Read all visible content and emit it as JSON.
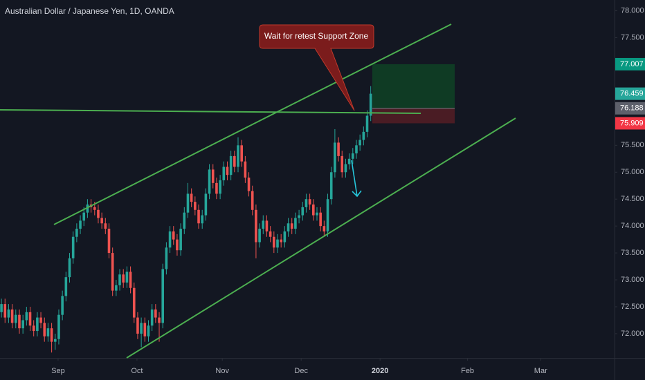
{
  "chart_data": {
    "type": "candlestick",
    "title": "Australian Dollar / Japanese Yen, 1D, OANDA",
    "annotation": "Wait for retest Support Zone",
    "up_color": "#26a69a",
    "down_color": "#ef5350",
    "ylim": [
      71.55,
      78.2
    ],
    "yticks": [
      {
        "value": 78,
        "label": "78.000"
      },
      {
        "value": 77.5,
        "label": "77.500"
      },
      {
        "value": 75.5,
        "label": "75.500"
      },
      {
        "value": 75,
        "label": "75.000"
      },
      {
        "value": 74.5,
        "label": "74.500"
      },
      {
        "value": 74,
        "label": "74.000"
      },
      {
        "value": 73.5,
        "label": "73.500"
      },
      {
        "value": 73,
        "label": "73.000"
      },
      {
        "value": 72.5,
        "label": "72.500"
      },
      {
        "value": 72,
        "label": "72.000"
      }
    ],
    "xlim": [
      -0.4,
      171
    ],
    "xticks": [
      {
        "value": 15.8,
        "label": "Sep"
      },
      {
        "value": 37.8,
        "label": "Oct"
      },
      {
        "value": 61.6,
        "label": "Nov"
      },
      {
        "value": 83.6,
        "label": "Dec"
      },
      {
        "value": 105.6,
        "label": "2020"
      },
      {
        "value": 130,
        "label": "Feb"
      },
      {
        "value": 150.4,
        "label": "Mar"
      }
    ],
    "price_tags": [
      {
        "value": 77.007,
        "color": "#089981"
      },
      {
        "value": 76.459,
        "color": "#26a69a"
      },
      {
        "value": 76.188,
        "color": "#5d606b"
      },
      {
        "value": 75.909,
        "color": "#f23645"
      }
    ],
    "candles": [
      [
        72.4,
        72.65,
        72.3,
        72.55
      ],
      [
        72.55,
        72.65,
        72.2,
        72.3
      ],
      [
        72.3,
        72.55,
        72.2,
        72.45
      ],
      [
        72.45,
        72.55,
        72.1,
        72.2
      ],
      [
        72.2,
        72.45,
        72.1,
        72.35
      ],
      [
        72.35,
        72.45,
        72.0,
        72.1
      ],
      [
        72.1,
        72.35,
        72.0,
        72.25
      ],
      [
        72.25,
        72.5,
        72.15,
        72.4
      ],
      [
        72.4,
        72.5,
        72.05,
        72.15
      ],
      [
        72.15,
        72.25,
        71.95,
        72.05
      ],
      [
        72.05,
        72.4,
        71.95,
        72.3
      ],
      [
        72.3,
        72.4,
        72.1,
        72.2
      ],
      [
        72.2,
        72.3,
        71.85,
        71.95
      ],
      [
        71.95,
        72.2,
        71.85,
        72.1
      ],
      [
        72.1,
        72.2,
        71.65,
        71.85
      ],
      [
        71.85,
        72.0,
        71.7,
        71.9
      ],
      [
        71.9,
        72.45,
        71.8,
        72.35
      ],
      [
        72.35,
        72.8,
        72.25,
        72.7
      ],
      [
        72.7,
        73.15,
        72.6,
        73.05
      ],
      [
        73.05,
        73.5,
        72.95,
        73.4
      ],
      [
        73.4,
        73.9,
        73.3,
        73.8
      ],
      [
        73.8,
        74.05,
        73.7,
        73.95
      ],
      [
        73.95,
        74.2,
        73.85,
        74.1
      ],
      [
        74.1,
        74.35,
        74.0,
        74.25
      ],
      [
        74.25,
        74.5,
        74.15,
        74.4
      ],
      [
        74.4,
        74.5,
        74.25,
        74.35
      ],
      [
        74.35,
        74.45,
        74.2,
        74.3
      ],
      [
        74.3,
        74.4,
        74.05,
        74.15
      ],
      [
        74.15,
        74.25,
        73.95,
        74.05
      ],
      [
        74.05,
        74.15,
        73.85,
        73.95
      ],
      [
        73.95,
        74.05,
        73.4,
        73.5
      ],
      [
        73.5,
        73.6,
        72.7,
        72.8
      ],
      [
        72.8,
        73.0,
        72.7,
        72.9
      ],
      [
        72.9,
        73.2,
        72.8,
        73.1
      ],
      [
        73.1,
        73.2,
        72.85,
        72.95
      ],
      [
        72.95,
        73.25,
        72.85,
        73.15
      ],
      [
        73.15,
        73.25,
        72.75,
        72.85
      ],
      [
        72.85,
        72.95,
        72.2,
        72.3
      ],
      [
        72.3,
        72.4,
        71.9,
        72.0
      ],
      [
        72.0,
        72.3,
        71.75,
        72.2
      ],
      [
        72.2,
        72.3,
        71.85,
        71.95
      ],
      [
        71.95,
        72.25,
        71.85,
        72.15
      ],
      [
        72.15,
        72.55,
        72.05,
        72.45
      ],
      [
        72.45,
        72.55,
        72.2,
        72.3
      ],
      [
        72.3,
        72.4,
        71.85,
        72.2
      ],
      [
        72.2,
        73.3,
        72.1,
        73.2
      ],
      [
        73.2,
        73.7,
        73.1,
        73.6
      ],
      [
        73.6,
        74.0,
        73.5,
        73.9
      ],
      [
        73.9,
        74.0,
        73.65,
        73.75
      ],
      [
        73.75,
        73.85,
        73.45,
        73.55
      ],
      [
        73.55,
        74.05,
        73.45,
        73.95
      ],
      [
        73.95,
        74.35,
        73.85,
        74.25
      ],
      [
        74.25,
        74.8,
        74.15,
        74.6
      ],
      [
        74.6,
        74.7,
        74.35,
        74.45
      ],
      [
        74.45,
        74.55,
        74.2,
        74.3
      ],
      [
        74.3,
        74.4,
        73.95,
        74.05
      ],
      [
        74.05,
        74.3,
        73.95,
        74.2
      ],
      [
        74.2,
        74.7,
        74.1,
        74.6
      ],
      [
        74.6,
        75.15,
        74.5,
        75.05
      ],
      [
        75.05,
        75.15,
        74.7,
        74.8
      ],
      [
        74.8,
        74.9,
        74.5,
        74.6
      ],
      [
        74.6,
        74.95,
        74.5,
        74.85
      ],
      [
        74.85,
        75.2,
        74.75,
        75.1
      ],
      [
        75.1,
        75.2,
        74.85,
        74.95
      ],
      [
        74.95,
        75.4,
        74.85,
        75.3
      ],
      [
        75.3,
        75.4,
        75.0,
        75.1
      ],
      [
        75.1,
        75.65,
        75.0,
        75.5
      ],
      [
        75.5,
        75.6,
        75.1,
        75.2
      ],
      [
        75.2,
        75.3,
        74.8,
        74.9
      ],
      [
        74.9,
        75.0,
        74.55,
        74.65
      ],
      [
        74.65,
        74.75,
        74.2,
        74.3
      ],
      [
        74.3,
        74.4,
        73.4,
        73.7
      ],
      [
        73.7,
        74.05,
        73.6,
        73.95
      ],
      [
        73.95,
        74.2,
        73.85,
        74.1
      ],
      [
        74.1,
        74.2,
        73.8,
        73.9
      ],
      [
        73.9,
        74.0,
        73.7,
        73.8
      ],
      [
        73.8,
        73.9,
        73.5,
        73.6
      ],
      [
        73.6,
        73.85,
        73.5,
        73.75
      ],
      [
        73.75,
        73.85,
        73.6,
        73.7
      ],
      [
        73.7,
        74.0,
        73.6,
        73.9
      ],
      [
        73.9,
        74.15,
        73.8,
        74.05
      ],
      [
        74.05,
        74.15,
        73.85,
        73.95
      ],
      [
        73.95,
        74.25,
        73.85,
        74.15
      ],
      [
        74.15,
        74.3,
        74.05,
        74.2
      ],
      [
        74.2,
        74.45,
        74.1,
        74.35
      ],
      [
        74.35,
        74.6,
        74.25,
        74.5
      ],
      [
        74.5,
        74.6,
        74.3,
        74.4
      ],
      [
        74.4,
        74.5,
        74.1,
        74.2
      ],
      [
        74.2,
        74.35,
        74.1,
        74.25
      ],
      [
        74.25,
        74.35,
        73.9,
        74.0
      ],
      [
        74.0,
        74.1,
        73.8,
        73.9
      ],
      [
        73.9,
        74.6,
        73.8,
        74.5
      ],
      [
        74.5,
        75.1,
        74.4,
        75.0
      ],
      [
        75.0,
        75.8,
        74.9,
        75.55
      ],
      [
        75.55,
        75.65,
        75.2,
        75.3
      ],
      [
        75.3,
        75.4,
        74.9,
        75.0
      ],
      [
        75.0,
        75.25,
        74.9,
        75.15
      ],
      [
        75.15,
        75.35,
        75.05,
        75.25
      ],
      [
        75.25,
        75.45,
        75.15,
        75.35
      ],
      [
        75.35,
        75.6,
        75.25,
        75.5
      ],
      [
        75.5,
        75.7,
        75.4,
        75.6
      ],
      [
        75.6,
        75.85,
        75.5,
        75.75
      ],
      [
        75.75,
        76.15,
        75.65,
        76.05
      ],
      [
        76.05,
        76.6,
        75.95,
        76.459
      ]
    ]
  }
}
